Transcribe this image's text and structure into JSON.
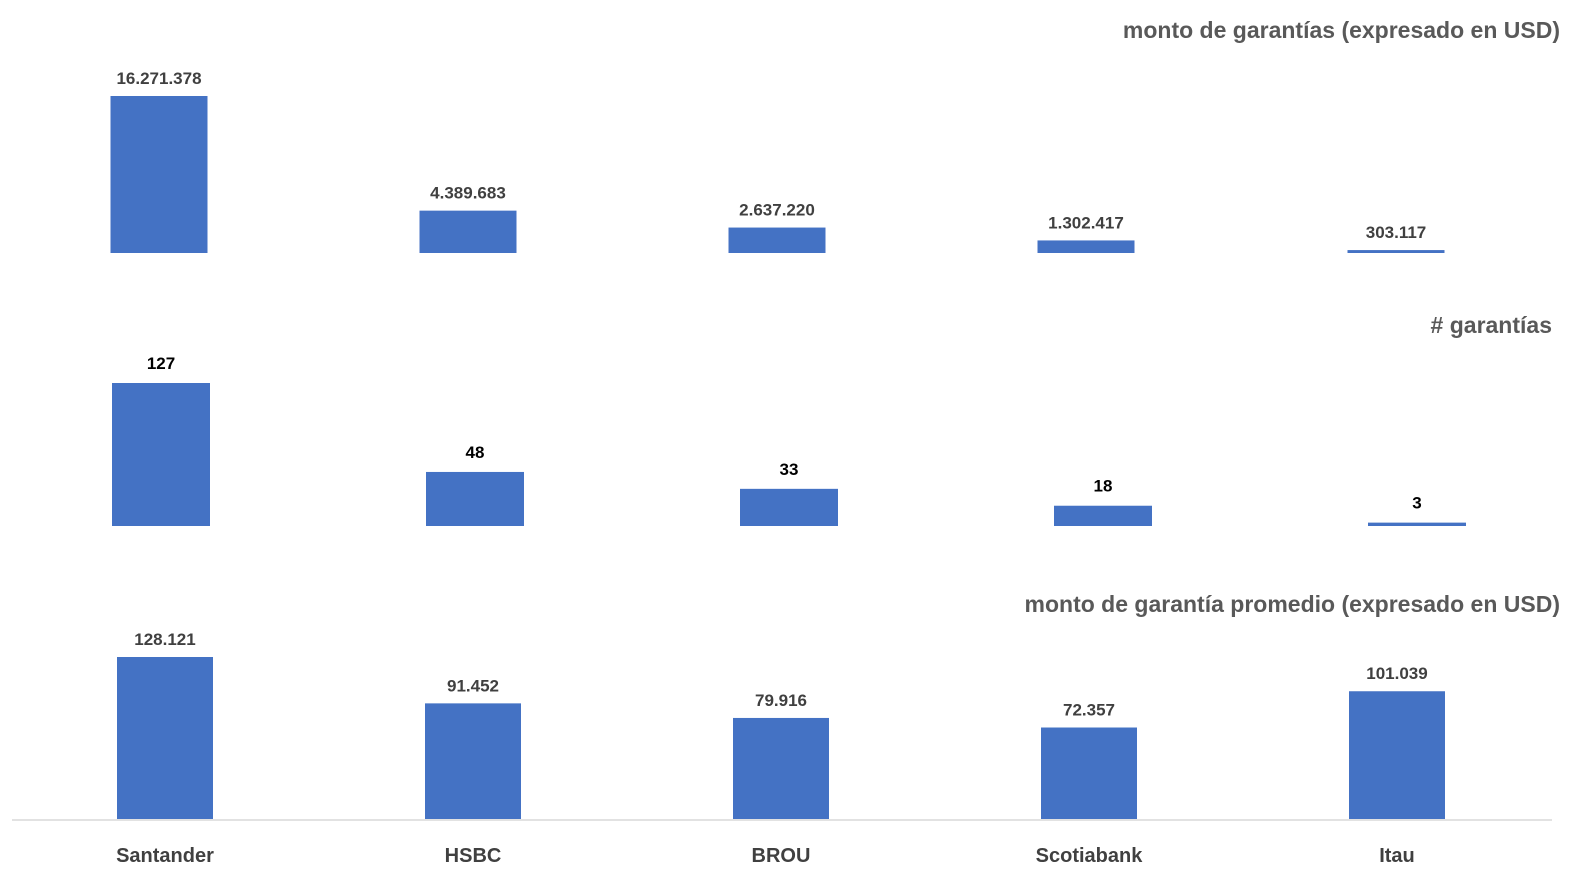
{
  "chart_data": [
    {
      "type": "bar",
      "title": "monto de garantías (expresado en USD)",
      "categories": [
        "Santander",
        "HSBC",
        "BROU",
        "Scotiabank",
        "Itau"
      ],
      "values": [
        16271378,
        4389683,
        2637220,
        1302417,
        303117
      ],
      "value_labels": [
        "16.271.378",
        "4.389.683",
        "2.637.220",
        "1.302.417",
        "303.117"
      ],
      "bar_color": "#4472C4",
      "label_color": "#404040",
      "title_color": "#595959"
    },
    {
      "type": "bar",
      "title": "# garantías",
      "categories": [
        "Santander",
        "HSBC",
        "BROU",
        "Scotiabank",
        "Itau"
      ],
      "values": [
        127,
        48,
        33,
        18,
        3
      ],
      "value_labels": [
        "127",
        "48",
        "33",
        "18",
        "3"
      ],
      "bar_color": "#4472C4",
      "label_color": "#000000",
      "title_color": "#595959"
    },
    {
      "type": "bar",
      "title": "monto de garantía promedio (expresado en USD)",
      "categories": [
        "Santander",
        "HSBC",
        "BROU",
        "Scotiabank",
        "Itau"
      ],
      "values": [
        128121,
        91452,
        79916,
        72357,
        101039
      ],
      "value_labels": [
        "128.121",
        "91.452",
        "79.916",
        "72.357",
        "101.039"
      ],
      "bar_color": "#4472C4",
      "label_color": "#404040",
      "title_color": "#595959"
    }
  ],
  "axis": {
    "categories": [
      "Santander",
      "HSBC",
      "BROU",
      "Scotiabank",
      "Itau"
    ],
    "label_color": "#404040",
    "line_color": "#d9d9d9"
  }
}
